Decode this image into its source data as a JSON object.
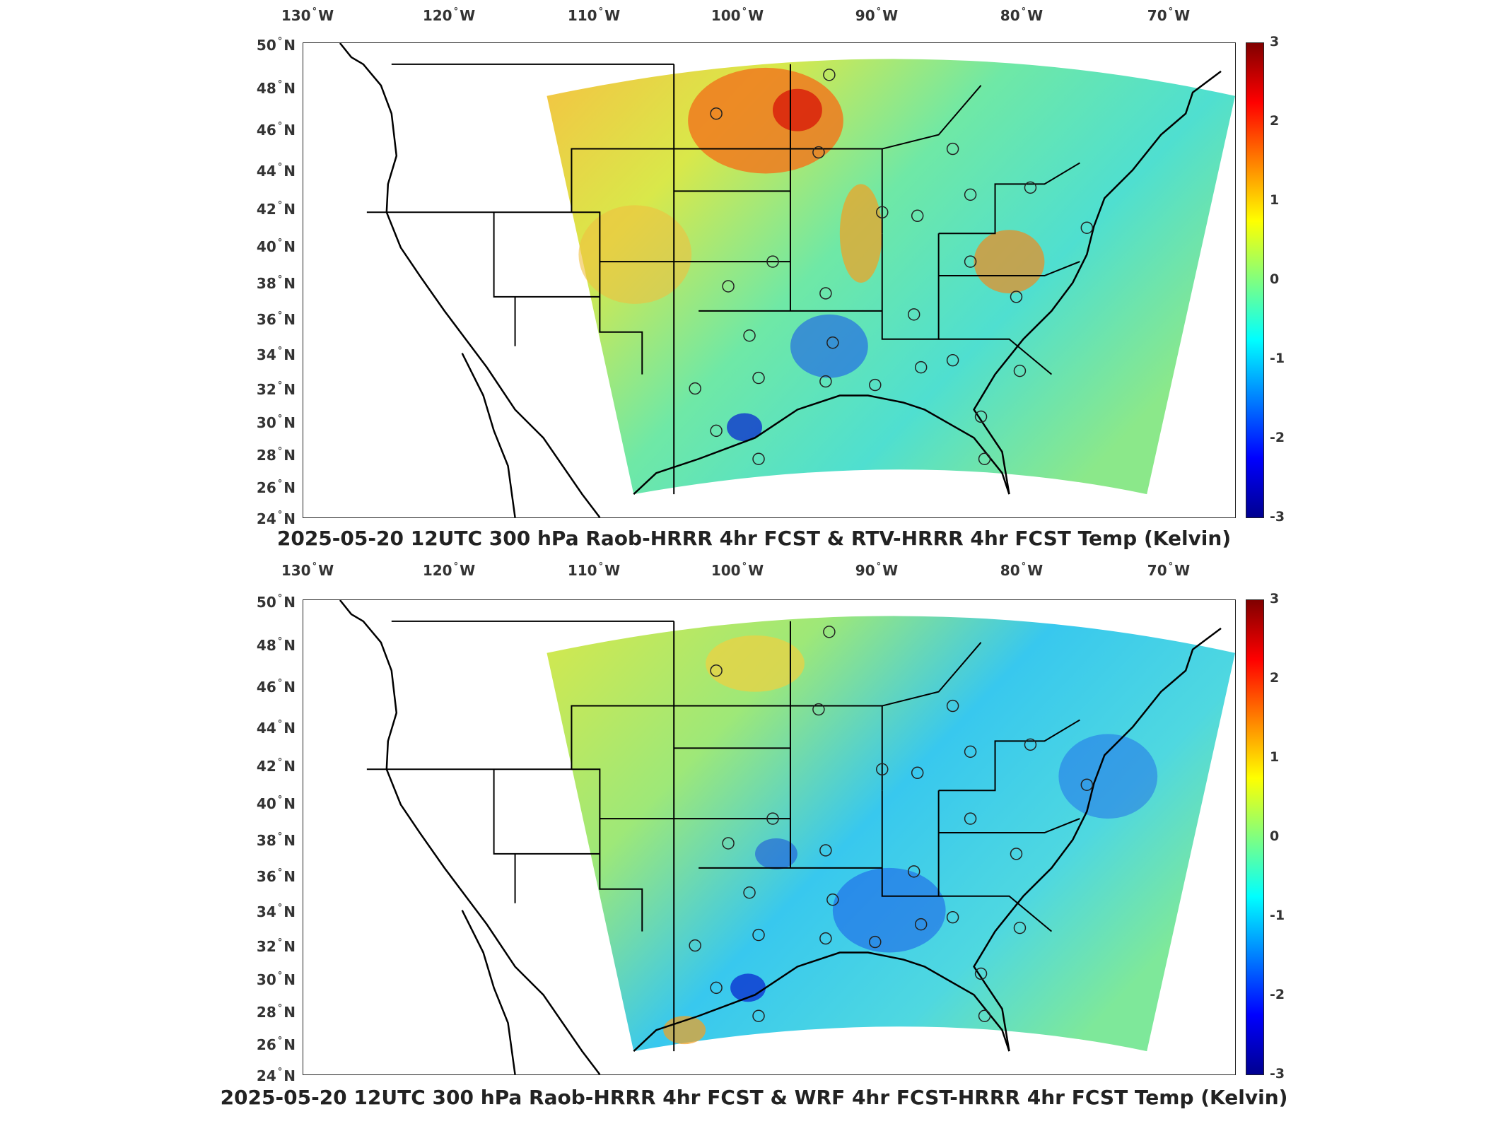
{
  "lon_labels": [
    "130",
    "120",
    "110",
    "100",
    "90",
    "80",
    "70"
  ],
  "lon_suffix": "W",
  "lat_labels": [
    "50",
    "48",
    "46",
    "44",
    "42",
    "40",
    "38",
    "36",
    "34",
    "32",
    "30",
    "28",
    "26",
    "24"
  ],
  "lat_suffix": "N",
  "colorbar_ticks": [
    "3",
    "2",
    "1",
    "0",
    "-1",
    "-2",
    "-3"
  ],
  "colormap": [
    "#00008f",
    "#0000ff",
    "#0080ff",
    "#00ffff",
    "#80ff80",
    "#ffff00",
    "#ff8000",
    "#ff0000",
    "#800000"
  ],
  "panels": [
    {
      "title": "2025-05-20 12UTC 300 hPa Raob-HRRR 4hr FCST & RTV-HRRR 4hr FCST Temp (Kelvin)"
    },
    {
      "title": "2025-05-20 12UTC 300 hPa Raob-HRRR 4hr FCST & WRF 4hr FCST-HRRR 4hr FCST Temp (Kelvin)"
    }
  ]
}
